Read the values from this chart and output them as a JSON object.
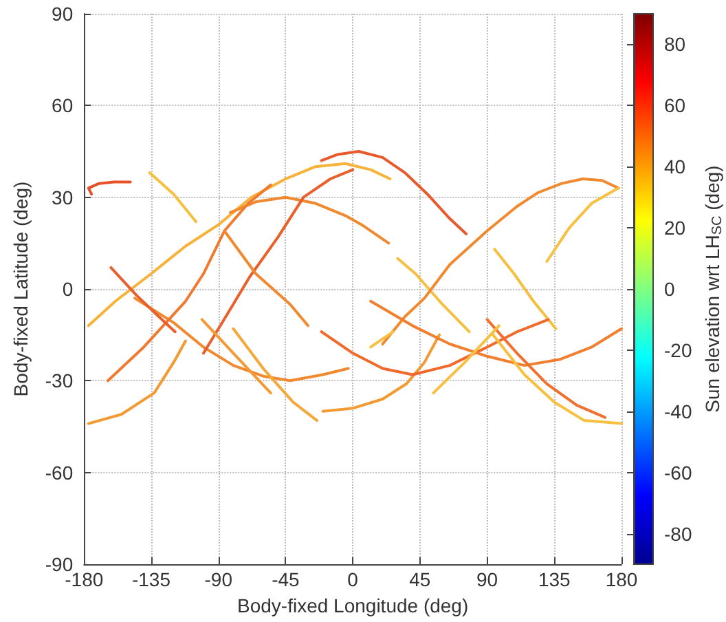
{
  "chart_data": {
    "type": "line",
    "xlabel": "Body-fixed Longitude (deg)",
    "ylabel": "Body-fixed Latitude (deg)",
    "clabel": "Sun elevation wrt LH$_{SC}$ (deg)",
    "xlim": [
      -180,
      180
    ],
    "xticks": [
      -180,
      -135,
      -90,
      -45,
      0,
      45,
      90,
      135,
      180
    ],
    "ylim": [
      -90,
      90
    ],
    "yticks": [
      -90,
      -60,
      -30,
      0,
      30,
      60,
      90
    ],
    "clim": [
      -90,
      90
    ],
    "cticks": [
      -80,
      -60,
      -40,
      -20,
      0,
      20,
      40,
      60,
      80
    ],
    "grid": true,
    "marker": "none",
    "line_style": "solid",
    "series": [
      {
        "color": "#e85a2c",
        "x": [
          -21,
          -10,
          4,
          20,
          35,
          50,
          65,
          76
        ],
        "values": [
          42,
          44,
          45,
          43,
          38,
          31,
          23,
          18
        ]
      },
      {
        "color": "#e8502a",
        "x": [
          -175,
          -177,
          -170,
          -160,
          -149
        ],
        "values": [
          31,
          33,
          34.5,
          35,
          35
        ]
      },
      {
        "color": "#f5c040",
        "x": [
          -136,
          -120,
          -105
        ],
        "values": [
          38,
          31,
          22
        ]
      },
      {
        "color": "#f7b23a",
        "x": [
          -177,
          -159,
          -135,
          -112,
          -90,
          -68,
          -45,
          -25,
          -5,
          12,
          25
        ],
        "values": [
          -12,
          -4,
          5,
          14,
          21,
          30,
          36,
          40,
          41,
          39,
          36
        ]
      },
      {
        "color": "#f08a30",
        "x": [
          -82,
          -65,
          -45,
          -25,
          -5,
          6,
          24
        ],
        "values": [
          25,
          28.5,
          30,
          28,
          24,
          21,
          15
        ]
      },
      {
        "color": "#f5c040",
        "x": [
          30,
          42,
          60,
          78
        ],
        "values": [
          10,
          5,
          -5,
          -14
        ]
      },
      {
        "color": "#f29a33",
        "x": [
          -20,
          0,
          20,
          36,
          48,
          58
        ],
        "values": [
          -40,
          -39,
          -36,
          -31,
          -24,
          -15
        ]
      },
      {
        "color": "#f08a30",
        "x": [
          20,
          35,
          48,
          65,
          90,
          110,
          124,
          140,
          154,
          167,
          178
        ],
        "values": [
          -18,
          -9,
          -3,
          8,
          19,
          27,
          31.5,
          34.5,
          36,
          35.5,
          33
        ]
      },
      {
        "color": "#f7c040",
        "x": [
          130,
          145,
          160,
          178
        ],
        "values": [
          9,
          20,
          28,
          33
        ]
      },
      {
        "color": "#f5c040",
        "x": [
          95,
          108,
          121,
          136
        ],
        "values": [
          13,
          5,
          -4,
          -13
        ]
      },
      {
        "color": "#f06a2c",
        "x": [
          -21,
          0,
          20,
          40,
          65,
          90,
          110,
          131
        ],
        "values": [
          -14,
          -21,
          -26,
          -28,
          -25,
          -19,
          -14,
          -10
        ]
      },
      {
        "color": "#f08030",
        "x": [
          12,
          40,
          65,
          90,
          115,
          139,
          160,
          180
        ],
        "values": [
          -4,
          -12,
          -18,
          -22,
          -25,
          -23,
          -19,
          -13
        ]
      },
      {
        "color": "#f08a30",
        "x": [
          -146,
          -120,
          -100,
          -80,
          -60,
          -42,
          -20,
          -3
        ],
        "values": [
          -3,
          -11,
          -19,
          -25,
          -28.5,
          -30,
          -28,
          -26
        ]
      },
      {
        "color": "#f29a33",
        "x": [
          -177,
          -155,
          -133,
          -120,
          -112
        ],
        "values": [
          -44,
          -41,
          -34,
          -24,
          -17
        ]
      },
      {
        "color": "#f07a30",
        "x": [
          -164,
          -140,
          -112,
          -100,
          -86,
          -70,
          -55
        ],
        "values": [
          -30,
          -19,
          -4,
          5,
          19,
          28,
          34
        ]
      },
      {
        "color": "#e8602c",
        "x": [
          -100,
          -85,
          -69,
          -50,
          -33,
          -15,
          0
        ],
        "values": [
          -21,
          -9,
          4,
          17,
          30,
          36,
          39
        ]
      },
      {
        "color": "#f08a30",
        "x": [
          -86,
          -65,
          -42,
          -30
        ],
        "values": [
          19,
          5,
          -5,
          -12
        ]
      },
      {
        "color": "#f29a33",
        "x": [
          -101,
          -80,
          -55
        ],
        "values": [
          -10,
          -21,
          -34
        ]
      },
      {
        "color": "#f5a83a",
        "x": [
          -80,
          -60,
          -40,
          -24
        ],
        "values": [
          -13,
          -26,
          -37,
          -43
        ]
      },
      {
        "color": "#e8602c",
        "x": [
          -162,
          -145,
          -130,
          -119
        ],
        "values": [
          7,
          -2,
          -9,
          -14
        ]
      },
      {
        "color": "#f07030",
        "x": [
          90,
          110,
          130,
          150,
          169
        ],
        "values": [
          -10,
          -21,
          -31,
          -38,
          -42
        ]
      },
      {
        "color": "#f7c040",
        "x": [
          94,
          115,
          135,
          155,
          180
        ],
        "values": [
          -15,
          -28,
          -37,
          -43,
          -44
        ]
      },
      {
        "color": "#f7c040",
        "x": [
          54,
          75,
          98
        ],
        "values": [
          -34,
          -24,
          -12
        ]
      },
      {
        "color": "#f7c040",
        "x": [
          12,
          27
        ],
        "values": [
          -19,
          -14
        ]
      }
    ]
  }
}
